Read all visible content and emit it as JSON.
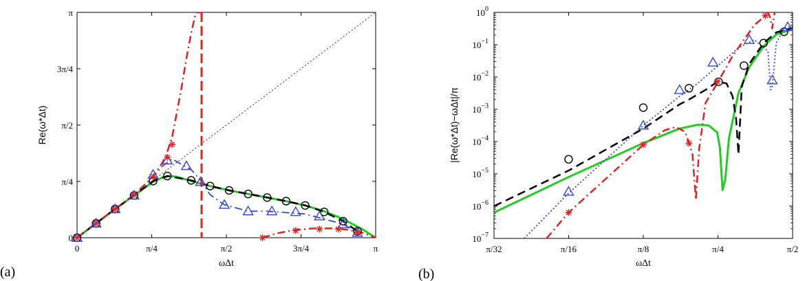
{
  "chart_data": [
    {
      "type": "line",
      "panel_label": "(a)",
      "xlabel": "ωΔt",
      "ylabel": "Re(ω*Δt)",
      "xlim": [
        0,
        3.1416
      ],
      "ylim": [
        0,
        3.1416
      ],
      "x_ticks": [
        {
          "v": 0,
          "label": "0"
        },
        {
          "v": 0.7854,
          "label": "π/4"
        },
        {
          "v": 1.5708,
          "label": "π/2"
        },
        {
          "v": 2.3562,
          "label": "3π/4"
        },
        {
          "v": 3.1416,
          "label": "π"
        }
      ],
      "y_ticks": [
        {
          "v": 0,
          "label": "0"
        },
        {
          "v": 0.7854,
          "label": "π/4"
        },
        {
          "v": 1.5708,
          "label": "π/2"
        },
        {
          "v": 2.3562,
          "label": "3π/4"
        },
        {
          "v": 3.1416,
          "label": "π"
        }
      ],
      "series": [
        {
          "style": "dotted",
          "color": "#000000",
          "width": 0.8,
          "marker": "none",
          "x": [
            0,
            3.1416
          ],
          "y": [
            0,
            3.1416
          ]
        },
        {
          "style": "solid",
          "color": "#22cc22",
          "width": 3,
          "marker": "none",
          "x": [
            0,
            0.2,
            0.4,
            0.6,
            0.8,
            0.9,
            0.98,
            1.05,
            1.2,
            1.4,
            1.6,
            1.8,
            2.0,
            2.2,
            2.4,
            2.6,
            2.8,
            3.0,
            3.1416
          ],
          "y": [
            0,
            0.2,
            0.4,
            0.59,
            0.78,
            0.84,
            0.86,
            0.85,
            0.79,
            0.72,
            0.66,
            0.61,
            0.56,
            0.51,
            0.45,
            0.37,
            0.26,
            0.12,
            0
          ]
        },
        {
          "style": "dashed",
          "color": "#000000",
          "width": 2.5,
          "marker": "circle",
          "markerColor": "#000000",
          "x": [
            0,
            0.2,
            0.4,
            0.6,
            0.8,
            0.95,
            1.2,
            1.4,
            1.6,
            1.8,
            2.0,
            2.2,
            2.4,
            2.6,
            2.8,
            2.95
          ],
          "y": [
            0,
            0.2,
            0.4,
            0.59,
            0.79,
            0.86,
            0.8,
            0.72,
            0.66,
            0.61,
            0.56,
            0.51,
            0.45,
            0.36,
            0.23,
            0.09
          ],
          "mx": [
            0,
            0.2,
            0.4,
            0.6,
            0.8,
            0.95,
            1.2,
            1.4,
            1.6,
            1.8,
            2.0,
            2.2,
            2.4,
            2.6,
            2.8,
            2.95
          ],
          "my": [
            0,
            0.2,
            0.4,
            0.59,
            0.79,
            0.86,
            0.8,
            0.72,
            0.66,
            0.61,
            0.56,
            0.51,
            0.45,
            0.36,
            0.23,
            0.09
          ]
        },
        {
          "style": "dashdot",
          "color": "#3344dd",
          "width": 1.8,
          "marker": "triangle",
          "markerColor": "#3344dd",
          "x": [
            0,
            0.2,
            0.4,
            0.6,
            0.8,
            0.9,
            1.0,
            1.1,
            1.2,
            1.3,
            1.4,
            1.55,
            1.8,
            2.0,
            2.4,
            2.8,
            2.95
          ],
          "y": [
            0,
            0.2,
            0.4,
            0.59,
            0.85,
            1.0,
            1.1,
            1.02,
            0.95,
            0.8,
            0.6,
            0.46,
            0.37,
            0.37,
            0.33,
            0.19,
            0.07
          ],
          "mx": [
            0,
            0.2,
            0.4,
            0.6,
            0.8,
            0.95,
            1.15,
            1.3,
            1.55,
            1.8,
            2.05,
            2.3,
            2.55,
            2.8,
            2.95
          ],
          "my": [
            0,
            0.2,
            0.4,
            0.59,
            0.88,
            1.08,
            1.0,
            0.78,
            0.46,
            0.37,
            0.37,
            0.36,
            0.3,
            0.19,
            0.07
          ]
        },
        {
          "style": "dashdot",
          "color": "#dd2222",
          "width": 2.5,
          "marker": "star",
          "markerColor": "#dd2222",
          "x": [
            0,
            0.2,
            0.4,
            0.6,
            0.8,
            0.9,
            0.95,
            1.0,
            1.05,
            1.1,
            1.15,
            1.2,
            1.25,
            1.28,
            1.3
          ],
          "y": [
            0,
            0.2,
            0.4,
            0.6,
            0.85,
            1.05,
            1.2,
            1.4,
            1.75,
            2.1,
            2.5,
            2.85,
            3.1416,
            3.1416,
            3.1416
          ],
          "mx": [
            0,
            0.2,
            0.4,
            0.6,
            0.8,
            0.95,
            1.0
          ],
          "my": [
            0,
            0.2,
            0.4,
            0.6,
            0.85,
            1.12,
            1.3
          ]
        },
        {
          "style": "dashed-thick",
          "color": "#dd2222",
          "width": 3,
          "marker": "none",
          "x": [
            1.31,
            1.31
          ],
          "y": [
            3.1416,
            0
          ]
        },
        {
          "style": "dashdot",
          "color": "#dd2222",
          "width": 2.5,
          "marker": "star",
          "markerColor": "#dd2222",
          "x": [
            1.95,
            2.1,
            2.3,
            2.5,
            2.7,
            2.85,
            3.0,
            3.1416
          ],
          "y": [
            0,
            0.06,
            0.11,
            0.13,
            0.13,
            0.11,
            0.07,
            0
          ],
          "mx": [
            1.95,
            2.3,
            2.55,
            2.75,
            2.95
          ],
          "my": [
            0,
            0.1,
            0.12,
            0.12,
            0.07
          ]
        }
      ]
    },
    {
      "type": "line",
      "panel_label": "(b)",
      "xlabel": "ωΔt",
      "ylabel": "|Re(ω*Δt)−ωΔt|/π",
      "xscale": "log2",
      "yscale": "log10",
      "xlim": [
        0.0982,
        1.5708
      ],
      "ylim": [
        -7,
        0
      ],
      "x_ticks": [
        {
          "v": 0.0982,
          "label": "π/32"
        },
        {
          "v": 0.1963,
          "label": "π/16"
        },
        {
          "v": 0.3927,
          "label": "π/8"
        },
        {
          "v": 0.7854,
          "label": "π/4"
        },
        {
          "v": 1.5708,
          "label": "π/2"
        }
      ],
      "y_ticks": [
        {
          "v": 0,
          "base": "10",
          "exp": "0"
        },
        {
          "v": -1,
          "base": "10",
          "exp": "−1"
        },
        {
          "v": -2,
          "base": "10",
          "exp": "−2"
        },
        {
          "v": -3,
          "base": "10",
          "exp": "−3"
        },
        {
          "v": -4,
          "base": "10",
          "exp": "−4"
        },
        {
          "v": -5,
          "base": "10",
          "exp": "−5"
        },
        {
          "v": -6,
          "base": "10",
          "exp": "−6"
        },
        {
          "v": -7,
          "base": "10",
          "exp": "−7"
        }
      ],
      "series": [
        {
          "style": "solid",
          "color": "#22cc22",
          "width": 3,
          "marker": "none",
          "x": [
            0.0982,
            0.1963,
            0.3927,
            0.55,
            0.65,
            0.72,
            0.78,
            0.8,
            0.82,
            0.84,
            0.87,
            0.95,
            1.05,
            1.2,
            1.35,
            1.5708
          ],
          "y": [
            -6.2,
            -5.1,
            -4.05,
            -3.6,
            -3.48,
            -3.5,
            -3.72,
            -4.2,
            -5.5,
            -5.2,
            -3.9,
            -2.5,
            -1.7,
            -1.05,
            -0.68,
            -0.52
          ]
        },
        {
          "style": "dashed",
          "color": "#000000",
          "width": 2.5,
          "marker": "circle",
          "markerColor": "#000000",
          "x": [
            0.0982,
            0.1963,
            0.3927,
            0.55,
            0.6,
            0.7,
            0.78,
            0.85,
            0.9,
            0.93,
            0.95,
            0.98,
            1.05,
            1.2,
            1.35,
            1.5708
          ],
          "y": [
            -6,
            -4.9,
            -3.6,
            -2.85,
            -2.7,
            -2.4,
            -2.15,
            -2.2,
            -2.6,
            -3.3,
            -4.4,
            -2.3,
            -1.6,
            -0.95,
            -0.62,
            -0.48
          ],
          "mx": [
            0.1963,
            0.3927,
            0.6,
            0.79,
            1.0,
            1.2,
            1.45
          ],
          "my": [
            -4.55,
            -2.95,
            -2.35,
            -2.15,
            -1.65,
            -0.95,
            -0.6
          ]
        },
        {
          "style": "dotted",
          "color": "#3344dd",
          "width": 1.8,
          "marker": "triangle",
          "markerColor": "#3344dd",
          "x": [
            0.13,
            0.1963,
            0.3927,
            0.55,
            0.65,
            0.8,
            0.95,
            1.1,
            1.25,
            1.28,
            1.3,
            1.35,
            1.45,
            1.5708
          ],
          "y": [
            -7,
            -5.6,
            -3.5,
            -2.6,
            -2.2,
            -1.6,
            -1.1,
            -0.85,
            -1.2,
            -2.4,
            -2.3,
            -0.95,
            -0.5,
            -0.42
          ],
          "mx": [
            0.1963,
            0.3927,
            0.55,
            0.75,
            1.05,
            1.3,
            1.5
          ],
          "my": [
            -5.55,
            -3.5,
            -2.4,
            -1.55,
            -0.85,
            -2.1,
            -0.45
          ]
        },
        {
          "style": "dashdot",
          "color": "#dd2222",
          "width": 2.5,
          "marker": "star",
          "markerColor": "#dd2222",
          "x": [
            0.16,
            0.1963,
            0.3927,
            0.48,
            0.53,
            0.58,
            0.62,
            0.64,
            0.66,
            0.7,
            0.78,
            0.9,
            1.0,
            1.1,
            1.2,
            1.25,
            1.28,
            1.3,
            1.33
          ],
          "y": [
            -7,
            -6.2,
            -4.1,
            -3.65,
            -3.55,
            -3.7,
            -4.4,
            -5.8,
            -4.2,
            -2.8,
            -2.2,
            -1.35,
            -0.85,
            -0.4,
            -0.15,
            0,
            -0.2,
            -0.5,
            0
          ],
          "mx": [
            0.1963,
            0.3927,
            0.6,
            0.78,
            1.22
          ],
          "my": [
            -6.2,
            -4.1,
            -4.05,
            -2.15,
            -0.1
          ]
        }
      ]
    }
  ]
}
